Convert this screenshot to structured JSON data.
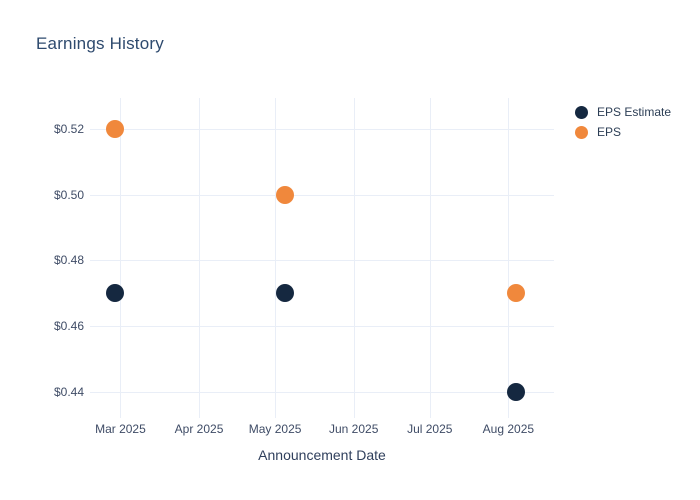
{
  "title": "Earnings History",
  "colors": {
    "background": "#ffffff",
    "navy": "#152840",
    "orange": "#f0883c",
    "title_text": "#2e4a6e",
    "axis_text": "#3f4c66",
    "gridline": "#e9eef7"
  },
  "chart_data": {
    "type": "scatter",
    "title": "Earnings History",
    "xlabel": "Announcement Date",
    "ylabel": "",
    "grid": true,
    "legend_position": "right",
    "x_range": [
      "2025-02-17",
      "2025-08-19"
    ],
    "y_range": [
      0.432,
      0.5295
    ],
    "x_ticks": [
      {
        "label": "Mar 2025",
        "date": "2025-03-01"
      },
      {
        "label": "Apr 2025",
        "date": "2025-04-01"
      },
      {
        "label": "May 2025",
        "date": "2025-05-01"
      },
      {
        "label": "Jun 2025",
        "date": "2025-06-01"
      },
      {
        "label": "Jul 2025",
        "date": "2025-07-01"
      },
      {
        "label": "Aug 2025",
        "date": "2025-08-01"
      }
    ],
    "y_ticks": [
      {
        "label": "$0.52",
        "value": 0.52
      },
      {
        "label": "$0.50",
        "value": 0.5
      },
      {
        "label": "$0.48",
        "value": 0.48
      },
      {
        "label": "$0.46",
        "value": 0.46
      },
      {
        "label": "$0.44",
        "value": 0.44
      }
    ],
    "series": [
      {
        "name": "EPS Estimate",
        "color": "#152840",
        "points": [
          {
            "date": "2025-02-27",
            "value": 0.47
          },
          {
            "date": "2025-05-05",
            "value": 0.47
          },
          {
            "date": "2025-08-04",
            "value": 0.44
          }
        ]
      },
      {
        "name": "EPS",
        "color": "#f0883c",
        "points": [
          {
            "date": "2025-02-27",
            "value": 0.52
          },
          {
            "date": "2025-05-05",
            "value": 0.5
          },
          {
            "date": "2025-08-04",
            "value": 0.47
          }
        ]
      }
    ]
  }
}
